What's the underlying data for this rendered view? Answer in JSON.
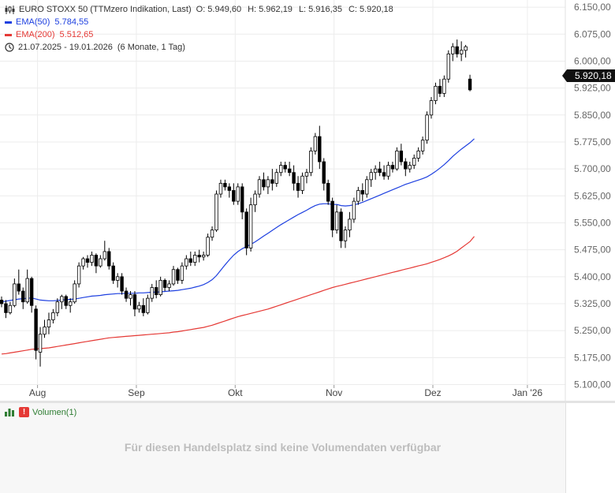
{
  "header": {
    "title": "EURO STOXX 50 (TTMzero Indikation, Last)",
    "open_label": "O:",
    "open": "5.949,60",
    "high_label": "H:",
    "high": "5.962,19",
    "low_label": "L:",
    "low": "5.916,35",
    "close_label": "C:",
    "close": "5.920,18",
    "ema50_label": "EMA(50)",
    "ema50_value": "5.784,55",
    "ema200_label": "EMA(200)",
    "ema200_value": "5.512,65",
    "period": "21.07.2025 - 19.01.2026",
    "period_detail": "(6 Monate, 1 Tag)",
    "icons": [
      "candlestick-icon",
      "clock-icon"
    ]
  },
  "price_badge": "5.920,18",
  "colors": {
    "ema50": "#1e40e0",
    "ema200": "#e53935",
    "candle": "#000000",
    "badge": "#111111",
    "warn": "#e53935"
  },
  "volume": {
    "label": "Volumen(1)",
    "message": "Für diesen Handelsplatz sind keine Volumendaten verfügbar",
    "icons": [
      "bar-chart-icon",
      "warning-icon"
    ]
  },
  "chart_data": {
    "type": "candlestick",
    "y_tick_labels": [
      "6.150,00",
      "6.075,00",
      "6.000,00",
      "5.925,00",
      "5.850,00",
      "5.775,00",
      "5.700,00",
      "5.625,00",
      "5.550,00",
      "5.475,00",
      "5.400,00",
      "5.325,00",
      "5.250,00",
      "5.175,00",
      "5.100,00"
    ],
    "y_ticks": [
      6150,
      6075,
      6000,
      5925,
      5850,
      5775,
      5700,
      5625,
      5550,
      5475,
      5400,
      5325,
      5250,
      5175,
      5100
    ],
    "ylim": [
      5055,
      6170
    ],
    "x_tick_labels": [
      "Aug",
      "Sep",
      "Okt",
      "Nov",
      "Dez",
      "Jan '26"
    ],
    "x_tick_index": [
      8,
      31,
      54,
      77,
      100,
      122
    ],
    "grid": true,
    "candles": [
      [
        5335,
        5345,
        5315,
        5325
      ],
      [
        5325,
        5335,
        5285,
        5300
      ],
      [
        5300,
        5330,
        5295,
        5320
      ],
      [
        5320,
        5395,
        5315,
        5380
      ],
      [
        5380,
        5420,
        5350,
        5360
      ],
      [
        5360,
        5370,
        5310,
        5330
      ],
      [
        5330,
        5420,
        5325,
        5395
      ],
      [
        5395,
        5400,
        5300,
        5320
      ],
      [
        5310,
        5320,
        5170,
        5195
      ],
      [
        5190,
        5260,
        5150,
        5240
      ],
      [
        5240,
        5280,
        5230,
        5260
      ],
      [
        5260,
        5300,
        5240,
        5280
      ],
      [
        5280,
        5310,
        5270,
        5300
      ],
      [
        5300,
        5340,
        5290,
        5330
      ],
      [
        5330,
        5350,
        5310,
        5345
      ],
      [
        5345,
        5350,
        5310,
        5320
      ],
      [
        5320,
        5340,
        5300,
        5330
      ],
      [
        5330,
        5390,
        5325,
        5380
      ],
      [
        5380,
        5440,
        5370,
        5430
      ],
      [
        5430,
        5455,
        5420,
        5450
      ],
      [
        5450,
        5460,
        5425,
        5440
      ],
      [
        5440,
        5470,
        5430,
        5460
      ],
      [
        5460,
        5465,
        5410,
        5430
      ],
      [
        5430,
        5460,
        5425,
        5450
      ],
      [
        5450,
        5500,
        5445,
        5470
      ],
      [
        5470,
        5480,
        5420,
        5430
      ],
      [
        5430,
        5440,
        5380,
        5390
      ],
      [
        5390,
        5410,
        5370,
        5400
      ],
      [
        5400,
        5410,
        5350,
        5360
      ],
      [
        5360,
        5370,
        5330,
        5340
      ],
      [
        5340,
        5360,
        5320,
        5350
      ],
      [
        5350,
        5360,
        5290,
        5310
      ],
      [
        5310,
        5330,
        5300,
        5320
      ],
      [
        5320,
        5340,
        5290,
        5300
      ],
      [
        5300,
        5350,
        5295,
        5340
      ],
      [
        5340,
        5380,
        5330,
        5370
      ],
      [
        5370,
        5390,
        5340,
        5350
      ],
      [
        5350,
        5400,
        5345,
        5390
      ],
      [
        5390,
        5395,
        5360,
        5370
      ],
      [
        5370,
        5390,
        5360,
        5380
      ],
      [
        5380,
        5430,
        5375,
        5420
      ],
      [
        5420,
        5425,
        5380,
        5390
      ],
      [
        5390,
        5440,
        5380,
        5430
      ],
      [
        5430,
        5460,
        5420,
        5450
      ],
      [
        5450,
        5470,
        5430,
        5440
      ],
      [
        5440,
        5470,
        5430,
        5460
      ],
      [
        5460,
        5475,
        5440,
        5455
      ],
      [
        5455,
        5470,
        5445,
        5460
      ],
      [
        5460,
        5520,
        5455,
        5510
      ],
      [
        5510,
        5540,
        5500,
        5530
      ],
      [
        5530,
        5640,
        5525,
        5630
      ],
      [
        5630,
        5670,
        5620,
        5660
      ],
      [
        5660,
        5670,
        5640,
        5650
      ],
      [
        5650,
        5660,
        5620,
        5640
      ],
      [
        5640,
        5660,
        5600,
        5610
      ],
      [
        5610,
        5660,
        5600,
        5650
      ],
      [
        5650,
        5660,
        5560,
        5580
      ],
      [
        5580,
        5590,
        5460,
        5480
      ],
      [
        5480,
        5620,
        5470,
        5600
      ],
      [
        5600,
        5640,
        5580,
        5630
      ],
      [
        5630,
        5680,
        5620,
        5670
      ],
      [
        5670,
        5690,
        5640,
        5650
      ],
      [
        5650,
        5680,
        5630,
        5670
      ],
      [
        5670,
        5700,
        5640,
        5660
      ],
      [
        5660,
        5700,
        5650,
        5690
      ],
      [
        5690,
        5720,
        5680,
        5710
      ],
      [
        5710,
        5720,
        5690,
        5700
      ],
      [
        5700,
        5720,
        5680,
        5690
      ],
      [
        5690,
        5710,
        5640,
        5660
      ],
      [
        5660,
        5680,
        5620,
        5640
      ],
      [
        5640,
        5690,
        5630,
        5680
      ],
      [
        5680,
        5700,
        5660,
        5690
      ],
      [
        5690,
        5760,
        5680,
        5750
      ],
      [
        5750,
        5800,
        5740,
        5790
      ],
      [
        5790,
        5820,
        5700,
        5720
      ],
      [
        5720,
        5730,
        5640,
        5660
      ],
      [
        5660,
        5670,
        5600,
        5610
      ],
      [
        5610,
        5620,
        5510,
        5530
      ],
      [
        5530,
        5600,
        5520,
        5580
      ],
      [
        5580,
        5590,
        5480,
        5500
      ],
      [
        5500,
        5540,
        5480,
        5530
      ],
      [
        5530,
        5580,
        5510,
        5560
      ],
      [
        5560,
        5620,
        5550,
        5610
      ],
      [
        5610,
        5650,
        5600,
        5640
      ],
      [
        5640,
        5660,
        5610,
        5630
      ],
      [
        5630,
        5680,
        5620,
        5670
      ],
      [
        5670,
        5700,
        5650,
        5690
      ],
      [
        5690,
        5710,
        5670,
        5700
      ],
      [
        5700,
        5720,
        5680,
        5690
      ],
      [
        5690,
        5710,
        5670,
        5680
      ],
      [
        5680,
        5720,
        5670,
        5710
      ],
      [
        5710,
        5720,
        5690,
        5700
      ],
      [
        5700,
        5760,
        5695,
        5750
      ],
      [
        5750,
        5770,
        5710,
        5720
      ],
      [
        5720,
        5730,
        5680,
        5700
      ],
      [
        5700,
        5720,
        5690,
        5710
      ],
      [
        5710,
        5740,
        5700,
        5730
      ],
      [
        5730,
        5760,
        5720,
        5750
      ],
      [
        5750,
        5790,
        5740,
        5780
      ],
      [
        5780,
        5860,
        5770,
        5850
      ],
      [
        5850,
        5900,
        5840,
        5890
      ],
      [
        5890,
        5940,
        5880,
        5930
      ],
      [
        5930,
        5950,
        5900,
        5910
      ],
      [
        5910,
        5960,
        5900,
        5950
      ],
      [
        5950,
        6030,
        5940,
        6020
      ],
      [
        6020,
        6050,
        6000,
        6040
      ],
      [
        6040,
        6060,
        6010,
        6020
      ],
      [
        6020,
        6055,
        6000,
        6030
      ],
      [
        6030,
        6045,
        6010,
        6040
      ],
      [
        5950,
        5962,
        5916,
        5920
      ]
    ],
    "series": [
      {
        "name": "EMA(50)",
        "color": "#1e40e0",
        "values": [
          5330,
          5332,
          5334,
          5336,
          5338,
          5339,
          5340,
          5341,
          5338,
          5335,
          5334,
          5333,
          5333,
          5334,
          5335,
          5336,
          5337,
          5338,
          5340,
          5342,
          5344,
          5346,
          5347,
          5348,
          5350,
          5351,
          5352,
          5353,
          5353,
          5354,
          5354,
          5354,
          5355,
          5355,
          5356,
          5357,
          5357,
          5358,
          5359,
          5360,
          5361,
          5362,
          5364,
          5366,
          5368,
          5371,
          5374,
          5378,
          5384,
          5392,
          5403,
          5418,
          5433,
          5447,
          5460,
          5470,
          5478,
          5484,
          5490,
          5497,
          5505,
          5513,
          5521,
          5529,
          5537,
          5545,
          5552,
          5559,
          5566,
          5573,
          5579,
          5585,
          5592,
          5598,
          5602,
          5603,
          5603,
          5601,
          5601,
          5598,
          5597,
          5598,
          5600,
          5603,
          5607,
          5612,
          5617,
          5622,
          5627,
          5632,
          5637,
          5642,
          5647,
          5652,
          5657,
          5661,
          5665,
          5669,
          5673,
          5678,
          5685,
          5693,
          5702,
          5712,
          5723,
          5735,
          5745,
          5755,
          5764,
          5773,
          5784
        ]
      },
      {
        "name": "EMA(200)",
        "color": "#e53935",
        "values": [
          5185,
          5186,
          5188,
          5190,
          5192,
          5194,
          5196,
          5198,
          5199,
          5200,
          5201,
          5202,
          5204,
          5206,
          5208,
          5210,
          5212,
          5214,
          5216,
          5218,
          5220,
          5222,
          5224,
          5226,
          5228,
          5230,
          5231,
          5232,
          5233,
          5234,
          5235,
          5236,
          5237,
          5238,
          5239,
          5240,
          5241,
          5242,
          5243,
          5244,
          5246,
          5247,
          5249,
          5251,
          5253,
          5255,
          5257,
          5259,
          5262,
          5265,
          5269,
          5273,
          5277,
          5281,
          5285,
          5289,
          5292,
          5295,
          5298,
          5301,
          5304,
          5307,
          5310,
          5314,
          5318,
          5322,
          5326,
          5330,
          5334,
          5338,
          5342,
          5346,
          5350,
          5354,
          5358,
          5362,
          5366,
          5370,
          5373,
          5376,
          5379,
          5382,
          5385,
          5388,
          5391,
          5394,
          5397,
          5400,
          5403,
          5406,
          5409,
          5412,
          5415,
          5418,
          5421,
          5424,
          5427,
          5430,
          5433,
          5436,
          5440,
          5444,
          5448,
          5453,
          5458,
          5464,
          5471,
          5480,
          5489,
          5498,
          5512
        ]
      }
    ]
  }
}
